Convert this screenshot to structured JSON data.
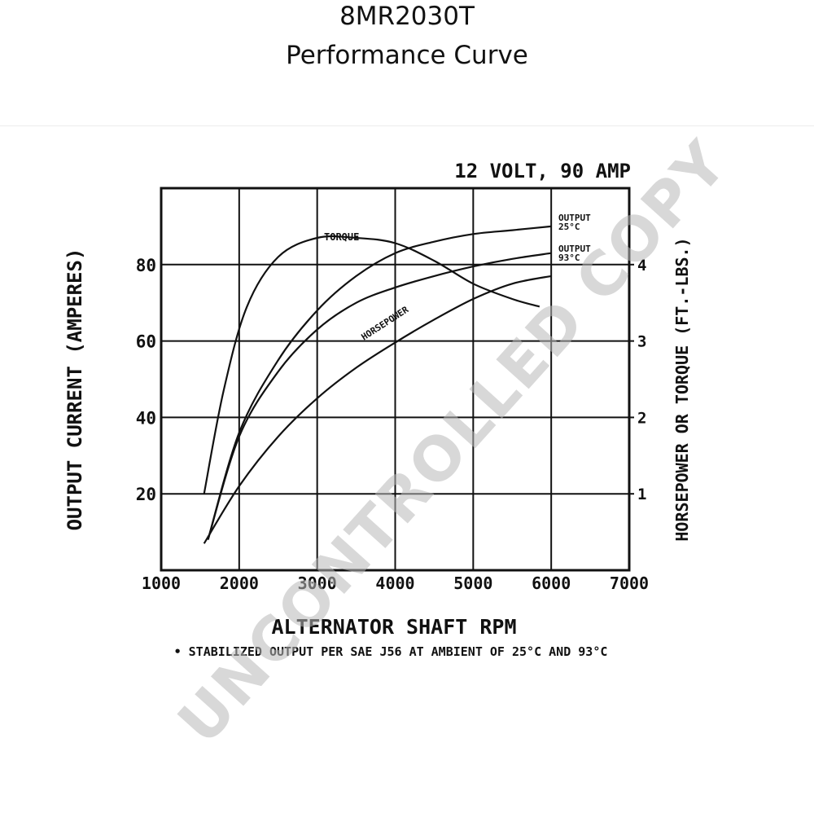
{
  "header": {
    "title": "8MR2030T",
    "subtitle": "Performance Curve"
  },
  "watermark": "UNCONTROLLED COPY",
  "chart_data": {
    "type": "line",
    "title": "12 VOLT, 90 AMP",
    "xlabel": "ALTERNATOR SHAFT RPM",
    "ylabel_left": "OUTPUT CURRENT (AMPERES)",
    "ylabel_right": "HORSEPOWER OR TORQUE (FT.-LBS.)",
    "footnote": "• STABILIZED OUTPUT PER SAE J56 AT AMBIENT OF 25°C AND 93°C",
    "xlim": [
      1000,
      7000
    ],
    "ylim_left": [
      0,
      100
    ],
    "ylim_right": [
      0,
      5
    ],
    "x_ticks": [
      "1000",
      "2000",
      "3000",
      "4000",
      "5000",
      "6000",
      "7000"
    ],
    "y_ticks_left": [
      "20",
      "40",
      "60",
      "80"
    ],
    "y_ticks_right": [
      "1",
      "2",
      "3",
      "4"
    ],
    "grid": true,
    "series": [
      {
        "name": "OUTPUT 25°C",
        "axis": "left",
        "points": [
          [
            1600,
            8
          ],
          [
            2000,
            36
          ],
          [
            2500,
            55
          ],
          [
            3000,
            68
          ],
          [
            3500,
            77
          ],
          [
            4000,
            83
          ],
          [
            4500,
            86
          ],
          [
            5000,
            88
          ],
          [
            5500,
            89
          ],
          [
            6000,
            90
          ]
        ]
      },
      {
        "name": "OUTPUT 93°C",
        "axis": "left",
        "points": [
          [
            1600,
            8
          ],
          [
            2000,
            35
          ],
          [
            2500,
            52
          ],
          [
            3000,
            63
          ],
          [
            3500,
            70
          ],
          [
            4000,
            74
          ],
          [
            4500,
            77
          ],
          [
            5000,
            79.5
          ],
          [
            5500,
            81.5
          ],
          [
            6000,
            83
          ]
        ]
      },
      {
        "name": "TORQUE",
        "axis": "right",
        "points": [
          [
            1550,
            1
          ],
          [
            1800,
            2.35
          ],
          [
            2100,
            3.45
          ],
          [
            2500,
            4.1
          ],
          [
            3000,
            4.35
          ],
          [
            3500,
            4.35
          ],
          [
            4000,
            4.28
          ],
          [
            4500,
            4.05
          ],
          [
            5000,
            3.75
          ],
          [
            5500,
            3.55
          ],
          [
            5850,
            3.45
          ]
        ]
      },
      {
        "name": "HORSEPOWER",
        "axis": "right",
        "points": [
          [
            1550,
            0.35
          ],
          [
            2000,
            1.1
          ],
          [
            2500,
            1.75
          ],
          [
            3000,
            2.25
          ],
          [
            3500,
            2.65
          ],
          [
            4000,
            2.98
          ],
          [
            4500,
            3.28
          ],
          [
            5000,
            3.55
          ],
          [
            5500,
            3.75
          ],
          [
            6000,
            3.85
          ]
        ]
      }
    ]
  }
}
